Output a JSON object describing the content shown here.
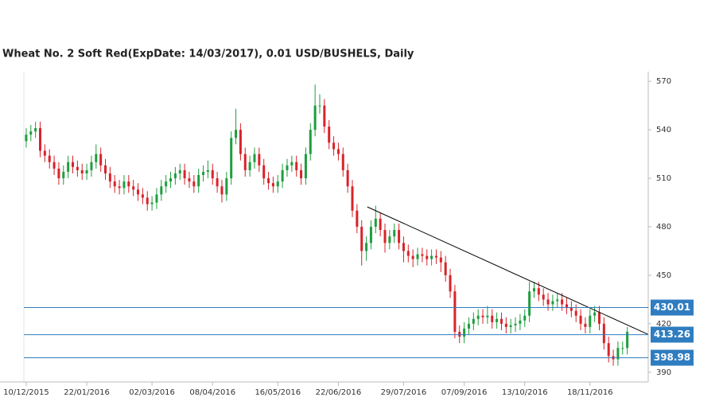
{
  "chart_data": {
    "type": "candlestick",
    "title": "Wheat  No. 2 Soft Red(ExpDate: 14/03/2017), 0.01 USD/BUSHELS, Daily",
    "categories": [
      "10/12/2015",
      null,
      null,
      null,
      null,
      null,
      null,
      null,
      null,
      null,
      null,
      null,
      null,
      "22/01/2016",
      null,
      null,
      null,
      null,
      null,
      null,
      null,
      null,
      null,
      null,
      null,
      null,
      null,
      "02/03/2016",
      null,
      null,
      null,
      null,
      null,
      null,
      null,
      null,
      null,
      null,
      null,
      null,
      "08/04/2016",
      null,
      null,
      null,
      null,
      null,
      null,
      null,
      null,
      null,
      null,
      null,
      null,
      null,
      "16/05/2016",
      null,
      null,
      null,
      null,
      null,
      null,
      null,
      null,
      null,
      null,
      null,
      null,
      "22/06/2016",
      null,
      null,
      null,
      null,
      null,
      null,
      null,
      null,
      null,
      null,
      null,
      null,
      null,
      "29/07/2016",
      null,
      null,
      null,
      null,
      null,
      null,
      null,
      null,
      null,
      null,
      null,
      null,
      "07/09/2016",
      null,
      null,
      null,
      null,
      null,
      null,
      null,
      null,
      null,
      null,
      null,
      null,
      "13/10/2016",
      null,
      null,
      null,
      null,
      null,
      null,
      null,
      null,
      null,
      null,
      null,
      null,
      null,
      "18/11/2016",
      null,
      null,
      null,
      null,
      null,
      null,
      null,
      null
    ],
    "open": [
      533,
      537,
      539,
      541,
      527,
      524,
      520,
      516,
      510,
      514,
      520,
      517,
      515,
      513,
      515,
      520,
      525,
      518,
      513,
      508,
      505,
      504,
      508,
      505,
      503,
      500,
      498,
      494,
      495,
      500,
      505,
      508,
      510,
      513,
      515,
      510,
      508,
      505,
      512,
      514,
      515,
      510,
      505,
      500,
      510,
      535,
      540,
      525,
      515,
      520,
      525,
      518,
      510,
      507,
      505,
      508,
      515,
      518,
      520,
      515,
      510,
      525,
      540,
      555,
      555,
      542,
      532,
      528,
      525,
      515,
      505,
      490,
      480,
      465,
      470,
      480,
      485,
      478,
      470,
      474,
      478,
      470,
      465,
      462,
      460,
      463,
      462,
      460,
      462,
      461,
      458,
      450,
      440,
      415,
      412,
      417,
      420,
      423,
      425,
      424,
      425,
      421,
      423,
      420,
      418,
      419,
      420,
      422,
      425,
      440,
      442,
      438,
      435,
      432,
      434,
      435,
      432,
      430,
      428,
      425,
      420,
      418,
      425,
      427,
      420,
      408,
      400,
      398,
      405,
      405
    ],
    "high": [
      541,
      543,
      545,
      545,
      531,
      528,
      524,
      520,
      518,
      524,
      524,
      521,
      519,
      519,
      524,
      531,
      529,
      522,
      517,
      512,
      509,
      512,
      512,
      509,
      507,
      504,
      502,
      499,
      504,
      509,
      512,
      514,
      517,
      519,
      519,
      514,
      512,
      516,
      518,
      521,
      519,
      514,
      509,
      514,
      539,
      553,
      544,
      529,
      524,
      529,
      529,
      522,
      514,
      511,
      512,
      519,
      522,
      524,
      524,
      519,
      529,
      544,
      568,
      562,
      559,
      546,
      536,
      532,
      529,
      519,
      509,
      494,
      484,
      474,
      484,
      493,
      489,
      482,
      478,
      482,
      482,
      474,
      469,
      466,
      467,
      467,
      466,
      466,
      466,
      465,
      462,
      454,
      444,
      419,
      421,
      424,
      427,
      429,
      429,
      431,
      429,
      427,
      427,
      424,
      423,
      424,
      426,
      429,
      446,
      446,
      446,
      442,
      439,
      438,
      439,
      439,
      436,
      434,
      432,
      429,
      424,
      429,
      431,
      431,
      424,
      412,
      404,
      409,
      409,
      418
    ],
    "low": [
      529,
      533,
      535,
      523,
      520,
      516,
      512,
      506,
      506,
      510,
      513,
      511,
      509,
      509,
      511,
      516,
      514,
      509,
      504,
      501,
      500,
      500,
      501,
      499,
      496,
      494,
      490,
      490,
      491,
      496,
      501,
      504,
      506,
      509,
      506,
      504,
      501,
      501,
      508,
      510,
      506,
      501,
      495,
      496,
      506,
      531,
      521,
      511,
      511,
      516,
      514,
      506,
      503,
      501,
      501,
      504,
      511,
      514,
      511,
      506,
      506,
      521,
      536,
      550,
      538,
      528,
      524,
      521,
      511,
      501,
      486,
      476,
      456,
      459,
      466,
      476,
      474,
      464,
      466,
      470,
      466,
      458,
      458,
      455,
      456,
      458,
      456,
      456,
      457,
      452,
      446,
      436,
      411,
      408,
      408,
      413,
      416,
      419,
      420,
      420,
      417,
      417,
      416,
      414,
      414,
      415,
      416,
      418,
      421,
      436,
      434,
      431,
      428,
      428,
      430,
      428,
      426,
      424,
      421,
      416,
      414,
      414,
      421,
      416,
      404,
      396,
      394,
      394,
      401,
      401
    ],
    "close": [
      537,
      539,
      541,
      527,
      524,
      520,
      516,
      510,
      514,
      520,
      517,
      515,
      513,
      515,
      520,
      525,
      518,
      513,
      508,
      505,
      504,
      508,
      505,
      503,
      500,
      498,
      494,
      495,
      500,
      505,
      508,
      510,
      513,
      515,
      510,
      508,
      505,
      512,
      514,
      515,
      510,
      505,
      500,
      510,
      535,
      540,
      525,
      515,
      520,
      525,
      518,
      510,
      507,
      505,
      508,
      515,
      518,
      520,
      515,
      510,
      525,
      540,
      555,
      555,
      542,
      532,
      528,
      525,
      515,
      505,
      490,
      480,
      465,
      470,
      480,
      485,
      478,
      470,
      474,
      478,
      470,
      465,
      462,
      460,
      463,
      462,
      460,
      462,
      461,
      458,
      450,
      440,
      415,
      412,
      417,
      420,
      423,
      425,
      424,
      425,
      421,
      423,
      420,
      418,
      419,
      420,
      422,
      425,
      440,
      442,
      438,
      435,
      432,
      434,
      435,
      432,
      430,
      428,
      425,
      420,
      418,
      425,
      427,
      420,
      408,
      400,
      398,
      405,
      405,
      415
    ],
    "up_color": "#1e9e3e",
    "down_color": "#d8232a",
    "ylim": [
      384,
      576
    ],
    "yticks": [
      390,
      420,
      450,
      480,
      510,
      540,
      570
    ],
    "levels": [
      430.01,
      413.26,
      398.98
    ],
    "level_color": "#2f7dc0",
    "trendline": {
      "x": [
        73.2,
        133.4
      ],
      "y": [
        492.3,
        413.5
      ]
    }
  }
}
